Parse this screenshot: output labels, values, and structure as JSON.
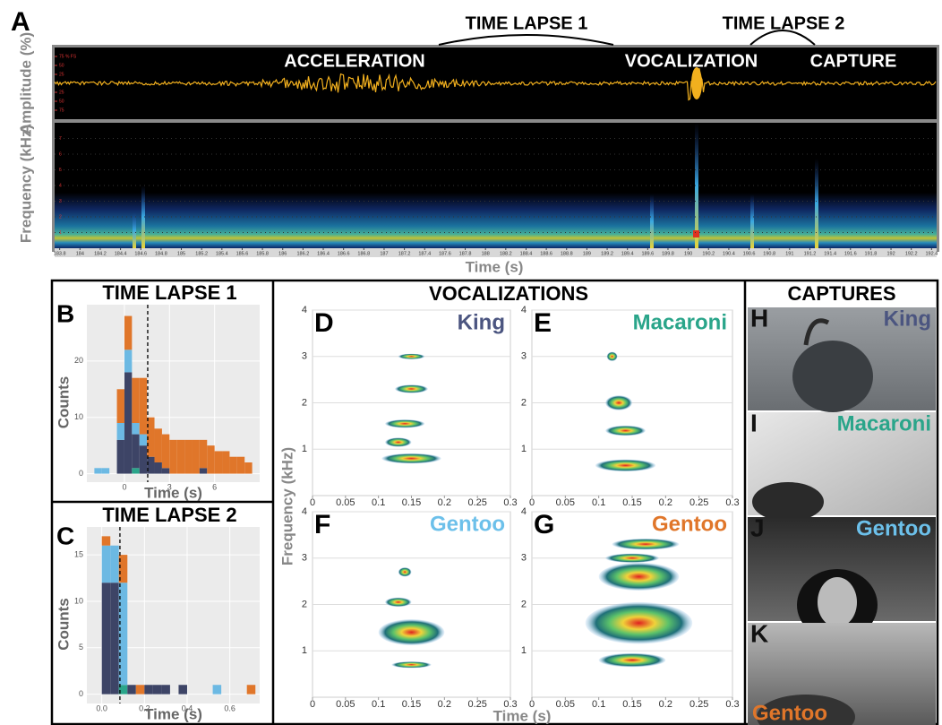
{
  "chart_data": [
    {
      "type": "recording",
      "panel": "A",
      "annotations": [
        "TIME LAPSE 1",
        "TIME LAPSE 2",
        "ACCELERATION",
        "VOCALIZATION",
        "CAPTURE"
      ],
      "y_label_top": "Amplitude (%)",
      "y_label": "Frequency (kHz)",
      "x_label": "Time (s)",
      "xlim": [
        183.75,
        192.45
      ],
      "xticks": [
        183.8,
        184,
        184.2,
        184.4,
        184.6,
        184.8,
        185,
        185.2,
        185.4,
        185.6,
        185.8,
        186,
        186.2,
        186.4,
        186.6,
        186.8,
        187,
        187.2,
        187.4,
        187.6,
        187.8,
        188,
        188.2,
        188.4,
        188.6,
        188.8,
        189,
        189.2,
        189.4,
        189.6,
        189.8,
        190,
        190.2,
        190.4,
        190.6,
        190.8,
        191,
        191.2,
        191.4,
        191.6,
        191.8,
        192,
        192.2,
        192.4
      ],
      "amp_lim": [
        -100,
        100
      ],
      "amp_ticks": [
        {
          "value": 75,
          "label": "75 % FS"
        },
        50,
        25,
        {
          "value": -25,
          "label": "25"
        },
        {
          "value": -50,
          "label": "50"
        },
        {
          "value": -75,
          "label": "75"
        }
      ],
      "ylim": [
        0,
        8
      ],
      "yticks": [
        1,
        2,
        3,
        4,
        5,
        6,
        7
      ]
    },
    {
      "type": "histogram",
      "panel": "B",
      "title": "TIME LAPSE 1",
      "x_label": "Time (s)",
      "y_label": "Counts",
      "bins": [
        -2,
        -1.5,
        -1,
        -0.5,
        0,
        0.5,
        1,
        1.5,
        2,
        2.5,
        3,
        3.5,
        4,
        4.5,
        5,
        5.5,
        6,
        6.5,
        7,
        7.5,
        8,
        8.5
      ],
      "series": [
        {
          "color": "#2aa58a",
          "values": [
            0,
            0,
            0,
            0,
            0,
            1,
            0,
            0,
            0,
            0,
            0,
            0,
            0,
            0,
            0,
            0,
            0,
            0,
            0,
            0,
            0
          ]
        },
        {
          "color": "#3d4466",
          "values": [
            0,
            0,
            0,
            6,
            18,
            6,
            5,
            3,
            2,
            1,
            0,
            0,
            0,
            0,
            1,
            0,
            0,
            0,
            0,
            0,
            0
          ]
        },
        {
          "color": "#6cb9e3",
          "values": [
            1,
            1,
            0,
            3,
            4,
            2,
            2,
            0,
            0,
            0,
            0,
            0,
            0,
            0,
            0,
            0,
            0,
            0,
            0,
            0,
            0
          ]
        },
        {
          "color": "#e0762a",
          "values": [
            0,
            0,
            0,
            6,
            6,
            8,
            10,
            7,
            6,
            6,
            6,
            6,
            6,
            6,
            5,
            5,
            4,
            4,
            3,
            3,
            2
          ]
        }
      ],
      "vline": 1.55,
      "xlim": [
        -2.5,
        9
      ],
      "xticks": [
        0,
        3,
        6
      ],
      "ylim": [
        -1.5,
        30
      ],
      "yticks": [
        0,
        10,
        20
      ],
      "grid": true
    },
    {
      "type": "histogram",
      "panel": "C",
      "title": "TIME LAPSE 2",
      "x_label": "Time (s)",
      "y_label": "Counts",
      "bins": [
        0,
        0.04,
        0.08,
        0.12,
        0.16,
        0.2,
        0.24,
        0.28,
        0.32,
        0.36,
        0.4,
        0.44,
        0.48,
        0.52,
        0.56,
        0.6,
        0.64,
        0.68,
        0.72
      ],
      "series": [
        {
          "color": "#2aa58a",
          "values": [
            0,
            0,
            1,
            0,
            0,
            0,
            0,
            0,
            0,
            0,
            0,
            0,
            0,
            0,
            0,
            0,
            0,
            0
          ]
        },
        {
          "color": "#3d4466",
          "values": [
            12,
            12,
            0,
            1,
            0,
            1,
            1,
            1,
            0,
            1,
            0,
            0,
            0,
            0,
            0,
            0,
            0,
            0
          ]
        },
        {
          "color": "#6cb9e3",
          "values": [
            4,
            4,
            11,
            0,
            0,
            0,
            0,
            0,
            0,
            0,
            0,
            0,
            0,
            1,
            0,
            0,
            0,
            0
          ]
        },
        {
          "color": "#e0762a",
          "values": [
            1,
            0,
            3,
            0,
            1,
            0,
            0,
            0,
            0,
            0,
            0,
            0,
            0,
            0,
            0,
            0,
            0,
            1
          ]
        }
      ],
      "vline": 0.085,
      "xlim": [
        -0.07,
        0.74
      ],
      "xticks": [
        {
          "value": 0,
          "label": "0.0"
        },
        0.2,
        0.4,
        0.6
      ],
      "ylim": [
        -1,
        18
      ],
      "yticks": [
        0,
        5,
        10,
        15
      ],
      "grid": true
    },
    {
      "type": "spectrogram",
      "panel": "D",
      "title": "King",
      "color": "#4b5580",
      "xlim": [
        0,
        0.3
      ],
      "xticks": [
        0,
        0.05,
        0.1,
        0.15,
        0.2,
        0.25,
        0.3
      ],
      "ylim": [
        0,
        4
      ],
      "yticks": [
        1,
        2,
        3,
        4
      ]
    },
    {
      "type": "spectrogram",
      "panel": "E",
      "title": "Macaroni",
      "color": "#2aa58a",
      "xlim": [
        0,
        0.3
      ],
      "xticks": [
        0,
        0.05,
        0.1,
        0.15,
        0.2,
        0.25,
        0.3
      ],
      "ylim": [
        0,
        4
      ],
      "yticks": [
        1,
        2,
        3,
        4
      ]
    },
    {
      "type": "spectrogram",
      "panel": "F",
      "title": "Gentoo",
      "color": "#6cc0ea",
      "xlim": [
        0,
        0.3
      ],
      "xticks": [
        0,
        0.05,
        0.1,
        0.15,
        0.2,
        0.25,
        0.3
      ],
      "ylim": [
        0,
        4
      ],
      "yticks": [
        1,
        2,
        3,
        4
      ]
    },
    {
      "type": "spectrogram",
      "panel": "G",
      "title": "Gentoo",
      "color": "#e0762a",
      "xlim": [
        0,
        0.3
      ],
      "xticks": [
        0,
        0.05,
        0.1,
        0.15,
        0.2,
        0.25,
        0.3
      ],
      "ylim": [
        0,
        4
      ],
      "yticks": [
        1,
        2,
        3,
        4
      ]
    }
  ],
  "vocalizations": {
    "title": "VOCALIZATIONS",
    "y_label": "Frequency (kHz)",
    "x_label": "Time (s)"
  },
  "captures": {
    "title": "CAPTURES",
    "panels": [
      {
        "panel": "H",
        "label": "King",
        "color": "#4b5580"
      },
      {
        "panel": "I",
        "label": "Macaroni",
        "color": "#2aa58a"
      },
      {
        "panel": "J",
        "label": "Gentoo",
        "color": "#6cc0ea"
      },
      {
        "panel": "K",
        "label": "Gentoo",
        "color": "#e0762a"
      }
    ]
  }
}
